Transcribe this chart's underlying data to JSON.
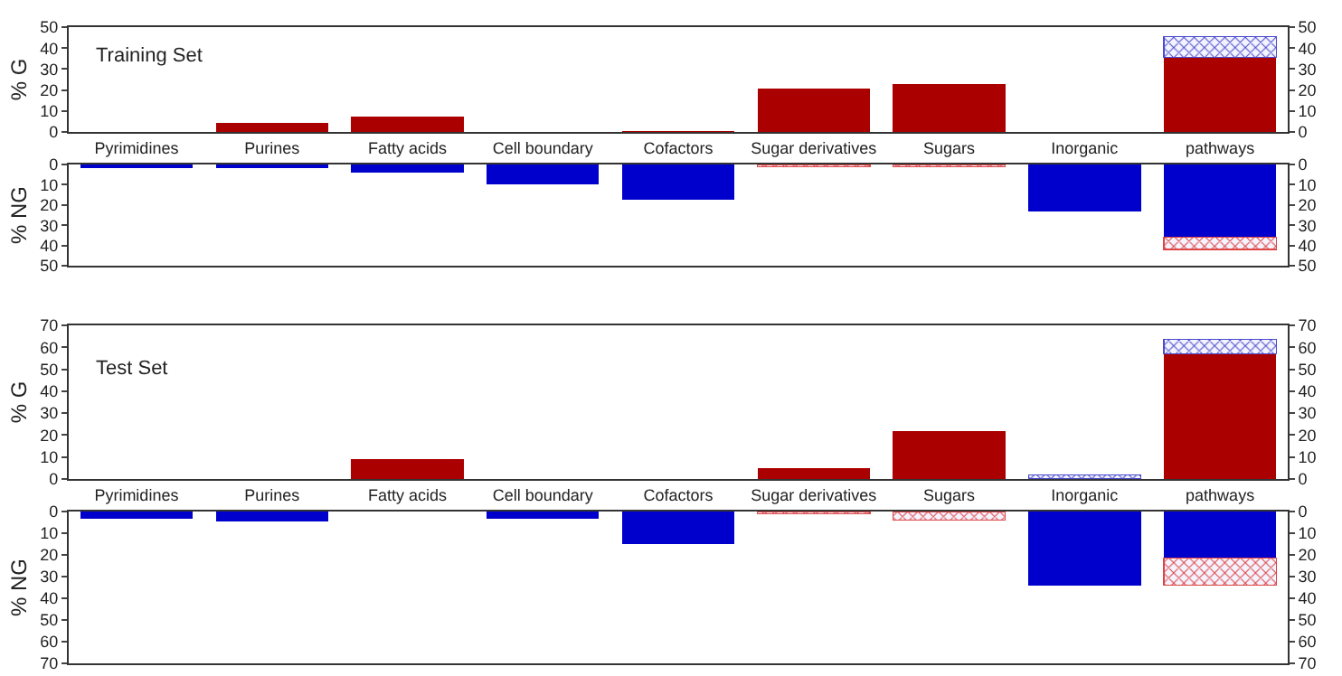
{
  "chart_data": [
    {
      "type": "bar",
      "stacked": true,
      "annotations": [
        "Training Set"
      ],
      "ylabel": "% G",
      "categories": [
        "Pyrimidines",
        "Purines",
        "Fatty acids",
        "Cell boundary",
        "Cofactors",
        "Sugar derivatives",
        "Sugars",
        "Inorganic",
        "pathways"
      ],
      "series": [
        {
          "color": "#aa0000",
          "values": [
            null,
            4.5,
            7.5,
            null,
            0.3,
            20.5,
            23,
            null,
            35.5
          ]
        },
        {
          "color": "#4a4acc",
          "values": [
            null,
            null,
            null,
            null,
            null,
            null,
            null,
            null,
            10
          ]
        }
      ],
      "ylim": [
        0,
        50
      ],
      "yticks": [
        0,
        10,
        20,
        30,
        40,
        50
      ],
      "y2lim": [
        0,
        50
      ],
      "y2ticks": [
        0,
        10,
        20,
        30,
        40,
        50
      ]
    },
    {
      "type": "bar",
      "stacked": true,
      "ylabel": "% NG",
      "tick_labels": "y",
      "categories": [
        null,
        null,
        null,
        null,
        null,
        null,
        null,
        null,
        null
      ],
      "series": [
        {
          "color": "#0000cc",
          "values": [
            2,
            2,
            4,
            10,
            17.5,
            null,
            null,
            23,
            36
          ]
        },
        {
          "color": "#dd4444",
          "values": [
            null,
            null,
            null,
            null,
            null,
            1,
            1,
            null,
            6
          ]
        }
      ],
      "ylim": [
        50,
        0
      ],
      "yticks": [
        0,
        10,
        20,
        30,
        40,
        50
      ],
      "y2lim": [
        50,
        0
      ],
      "y2ticks": [
        0,
        10,
        20,
        30,
        40,
        50
      ]
    },
    {
      "type": "bar",
      "stacked": true,
      "annotations": [
        "Test Set"
      ],
      "ylabel": "% G",
      "categories": [
        "Pyrimidines",
        "Purines",
        "Fatty acids",
        "Cell boundary",
        "Cofactors",
        "Sugar derivatives",
        "Sugars",
        "Inorganic",
        "pathways"
      ],
      "series": [
        {
          "color": "#aa0000",
          "values": [
            null,
            null,
            9,
            null,
            null,
            5,
            22,
            null,
            57
          ]
        },
        {
          "color": "#4a4acc",
          "values": [
            null,
            null,
            null,
            null,
            null,
            null,
            null,
            2,
            6.5
          ]
        }
      ],
      "ylim": [
        0,
        70
      ],
      "yticks": [
        0,
        10,
        20,
        30,
        40,
        50,
        60,
        70
      ],
      "y2lim": [
        0,
        70
      ],
      "y2ticks": [
        0,
        10,
        20,
        30,
        40,
        50,
        60,
        70
      ]
    },
    {
      "type": "bar",
      "stacked": true,
      "ylabel": "% NG",
      "tick_labels": "y",
      "categories": [
        null,
        null,
        null,
        null,
        null,
        null,
        null,
        null,
        null
      ],
      "series": [
        {
          "color": "#0000cc",
          "values": [
            3.5,
            4.5,
            null,
            3.5,
            15,
            null,
            null,
            34,
            21.5
          ]
        },
        {
          "color": "#dd4444",
          "values": [
            null,
            null,
            null,
            null,
            null,
            1,
            4,
            null,
            12.5
          ]
        }
      ],
      "ylim": [
        70,
        0
      ],
      "yticks": [
        0,
        10,
        20,
        30,
        40,
        50,
        60,
        70
      ],
      "y2lim": [
        70,
        0
      ],
      "y2ticks": [
        0,
        10,
        20,
        30,
        40,
        50,
        60,
        70
      ]
    }
  ]
}
